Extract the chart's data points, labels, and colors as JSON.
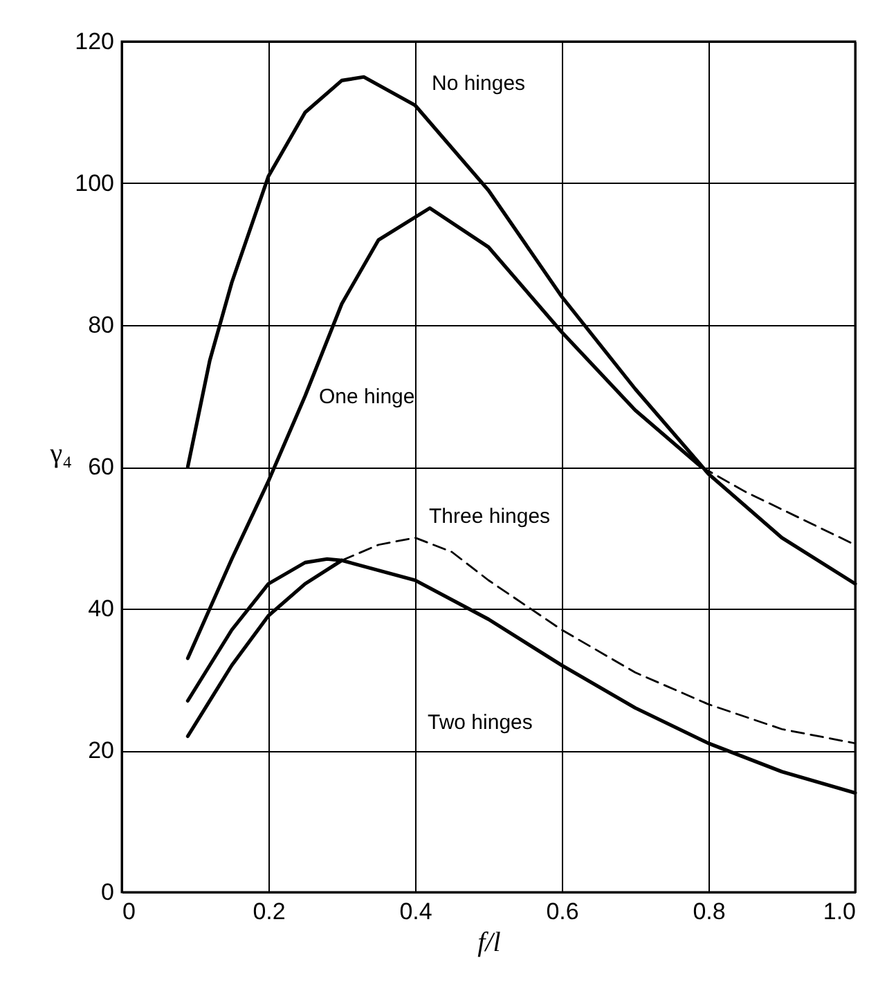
{
  "chart_data": {
    "type": "line",
    "xlabel": "f/l",
    "ylabel": "γ₄",
    "xlim": [
      0,
      1
    ],
    "ylim": [
      0,
      120
    ],
    "xticks": [
      0,
      0.2,
      0.4,
      0.6,
      0.8,
      {
        "value": 1,
        "label": "1.0"
      }
    ],
    "yticks": [
      0,
      20,
      40,
      60,
      80,
      100,
      120
    ],
    "grid": true,
    "marker": "none",
    "series": [
      {
        "name": "No hinges",
        "color": "#000000",
        "line_style": "solid",
        "x": [
          0.09,
          0.12,
          0.15,
          0.2,
          0.25,
          0.3,
          0.33,
          0.4,
          0.5,
          0.6,
          0.7,
          0.8,
          0.9,
          1.0
        ],
        "values": [
          60,
          75,
          86,
          101,
          110,
          114.5,
          115,
          111,
          99,
          84,
          71,
          59,
          50,
          43.5
        ]
      },
      {
        "name": "One hinge",
        "color": "#000000",
        "line_style": "solid",
        "x": [
          0.09,
          0.15,
          0.2,
          0.25,
          0.3,
          0.35,
          0.42,
          0.5,
          0.6,
          0.7,
          0.79
        ],
        "values": [
          33,
          47,
          58,
          70,
          83,
          92,
          96.5,
          91,
          79,
          68,
          60
        ]
      },
      {
        "color": "#000000",
        "line_style": "dashed",
        "x": [
          0.79,
          0.85,
          0.9,
          1.0
        ],
        "values": [
          60,
          56.5,
          54,
          49
        ]
      },
      {
        "name": "Two hinges",
        "color": "#000000",
        "line_style": "solid",
        "x": [
          0.09,
          0.15,
          0.2,
          0.25,
          0.28,
          0.3,
          0.4,
          0.5,
          0.6,
          0.7,
          0.8,
          0.9,
          1.0
        ],
        "values": [
          27,
          37,
          43.5,
          46.5,
          47,
          46.8,
          44,
          38.5,
          32,
          26,
          21,
          17,
          14
        ]
      },
      {
        "color": "#000000",
        "line_style": "solid",
        "x": [
          0.09,
          0.15,
          0.2,
          0.25,
          0.3
        ],
        "values": [
          22,
          32,
          39,
          43.5,
          46.8
        ]
      },
      {
        "name": "Three hinges",
        "color": "#000000",
        "line_style": "dashed",
        "x": [
          0.3,
          0.35,
          0.4,
          0.45,
          0.5,
          0.6,
          0.7,
          0.8,
          0.9,
          1.0
        ],
        "values": [
          46.8,
          49,
          50,
          48,
          44,
          37,
          31,
          26.5,
          23,
          21
        ]
      }
    ]
  }
}
